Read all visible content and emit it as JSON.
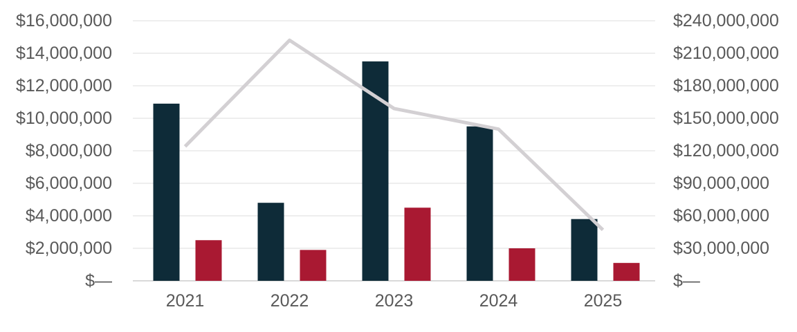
{
  "chart_data": {
    "type": "bar",
    "subtype": "combo-bar-line-dual-axis",
    "title": "",
    "xlabel": "",
    "ylabel": "",
    "legend": "none",
    "grid": true,
    "categories": [
      "2021",
      "2022",
      "2023",
      "2024",
      "2025"
    ],
    "series": [
      {
        "name": "dark-bars",
        "type": "bar",
        "axis": "left",
        "color": "#0e2b38",
        "values": [
          10900000,
          4800000,
          13500000,
          9500000,
          3800000
        ]
      },
      {
        "name": "red-bars",
        "type": "bar",
        "axis": "left",
        "color": "#a91932",
        "values": [
          2500000,
          1900000,
          4500000,
          2000000,
          1100000
        ]
      },
      {
        "name": "gray-trend-line",
        "type": "line",
        "axis": "right",
        "color": "#d3d0d3",
        "values": [
          124000000,
          222000000,
          159000000,
          140000000,
          47000000
        ]
      }
    ],
    "left_axis": {
      "min": 0,
      "max": 16000000,
      "step": 2000000,
      "tick_labels": [
        "$16,000,000",
        "$14,000,000",
        "$12,000,000",
        "$10,000,000",
        "$8,000,000",
        "$6,000,000",
        "$4,000,000",
        "$2,000,000",
        "$—"
      ]
    },
    "right_axis": {
      "min": 0,
      "max": 240000000,
      "step": 30000000,
      "tick_labels": [
        "$240,000,000",
        "$210,000,000",
        "$180,000,000",
        "$150,000,000",
        "$120,000,000",
        "$90,000,000",
        "$60,000,000",
        "$30,000,000",
        "$—"
      ]
    },
    "colors": {
      "gridline": "#e9e9e9",
      "baseline": "#d9d9d9",
      "tick_text": "#595959",
      "background": "#ffffff"
    }
  }
}
